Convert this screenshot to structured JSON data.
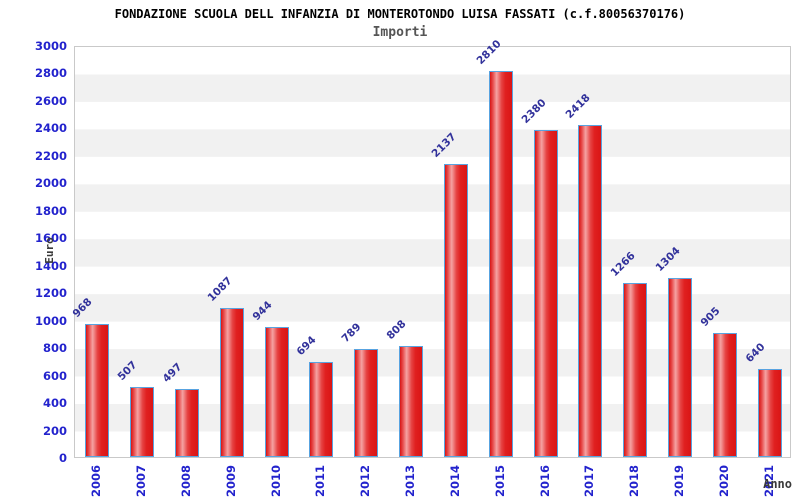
{
  "header": {
    "title": "FONDAZIONE SCUOLA DELL INFANZIA DI MONTEROTONDO LUISA FASSATI (c.f.80056370176)",
    "subtitle": "Importi"
  },
  "chart_data": {
    "type": "bar",
    "title": "FONDAZIONE SCUOLA DELL INFANZIA DI MONTEROTONDO LUISA FASSATI (c.f.80056370176)",
    "subtitle": "Importi",
    "xlabel": "Anno",
    "ylabel": "Euro",
    "categories": [
      "2006",
      "2007",
      "2008",
      "2009",
      "2010",
      "2011",
      "2012",
      "2013",
      "2014",
      "2015",
      "2016",
      "2017",
      "2018",
      "2019",
      "2020",
      "2021"
    ],
    "values": [
      968,
      507,
      497,
      1087,
      944,
      694,
      789,
      808,
      2137,
      2810,
      2380,
      2418,
      1266,
      1304,
      905,
      640
    ],
    "ylim": [
      0,
      3000
    ],
    "ytick_step": 200,
    "grid": "alternating-horizontal-bands",
    "legend": "none",
    "bar_value_labels_rotation_deg": -45,
    "x_tick_rotation_deg": -90,
    "colors": {
      "bar_fill": "#e02020",
      "bar_highlight": "#f5a3a3",
      "bar_border": "#58a3e0",
      "tick_label": "#2323cd",
      "value_label": "#32329b",
      "axis_title": "#3a3a3a",
      "band_gray": "#f1f1f1",
      "plot_border": "#c9c9c9",
      "title": "#000000",
      "subtitle": "#555555"
    }
  }
}
